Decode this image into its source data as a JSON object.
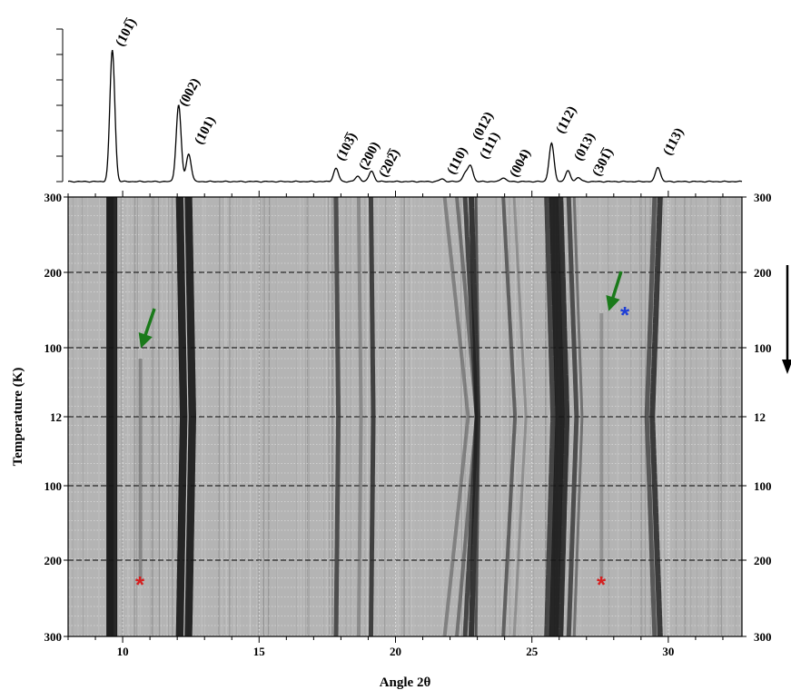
{
  "chart_data": {
    "type": "heatmap",
    "xlabel": "Angle 2θ",
    "ylabel": "Temperature (K)",
    "xlim": [
      8,
      32.7
    ],
    "x_ticks": [
      "10",
      "15",
      "20",
      "25",
      "30"
    ],
    "y_ticks_left": [
      "300",
      "200",
      "100",
      "12",
      "100",
      "200",
      "300"
    ],
    "y_ticks_right": [
      "300",
      "200",
      "100",
      "12",
      "100",
      "200",
      "300"
    ],
    "temperature_profile": "cooling 300 K → 12 K, then warming 12 K → 300 K",
    "grid": true,
    "pattern_peaks": [
      {
        "label": "(10̅ 1)",
        "x": 9.62,
        "intensity": 1.0
      },
      {
        "label": "(002)",
        "x": 12.05,
        "intensity": 0.58
      },
      {
        "label": "(101)",
        "x": 12.42,
        "intensity": 0.21
      },
      {
        "label": "(103̅)",
        "x": 17.82,
        "intensity": 0.1
      },
      {
        "label": "(200)",
        "x": 18.62,
        "intensity": 0.04
      },
      {
        "label": "(202̅)",
        "x": 19.12,
        "intensity": 0.08
      },
      {
        "label": "(110)",
        "x": 21.7,
        "intensity": 0.02
      },
      {
        "label": "(012)",
        "x": 22.55,
        "intensity": 0.06
      },
      {
        "label": "(111)",
        "x": 22.75,
        "intensity": 0.12
      },
      {
        "label": "(004)",
        "x": 23.95,
        "intensity": 0.03
      },
      {
        "label": "(112)",
        "x": 25.72,
        "intensity": 0.29
      },
      {
        "label": "(013)",
        "x": 26.32,
        "intensity": 0.08
      },
      {
        "label": "(301̅)",
        "x": 26.7,
        "intensity": 0.03
      },
      {
        "label": "(113)",
        "x": 29.62,
        "intensity": 0.11
      }
    ],
    "peak_labels": [
      "(101̅)",
      "(002)",
      "(101)",
      "(103̅)",
      "(200)",
      "(202̅)",
      "(110)",
      "(012)",
      "(111)",
      "(004)",
      "(112)",
      "(013)",
      "(301̅)",
      "(113)"
    ],
    "annotations": [
      {
        "type": "green-arrow",
        "points_to_x": 10.6,
        "points_to_T": 100,
        "segment": "cooling"
      },
      {
        "type": "green-arrow",
        "points_to_x": 27.5,
        "points_to_T": 150,
        "segment": "cooling"
      },
      {
        "type": "blue-asterisk",
        "label": "*",
        "x": 28.3,
        "T": 150,
        "segment": "cooling"
      },
      {
        "type": "red-asterisk",
        "label": "*",
        "x": 10.7,
        "T": 235,
        "segment": "warming"
      },
      {
        "type": "red-asterisk",
        "label": "*",
        "x": 27.5,
        "T": 235,
        "segment": "warming"
      },
      {
        "type": "black-arrow",
        "direction": "down"
      }
    ],
    "colors": {
      "green_arrow": "#1a7a1a",
      "blue_asterisk": "#1f3fd6",
      "red_asterisk": "#d42020",
      "map_background": "#b4b4b4",
      "line_dark": "#151515"
    }
  }
}
